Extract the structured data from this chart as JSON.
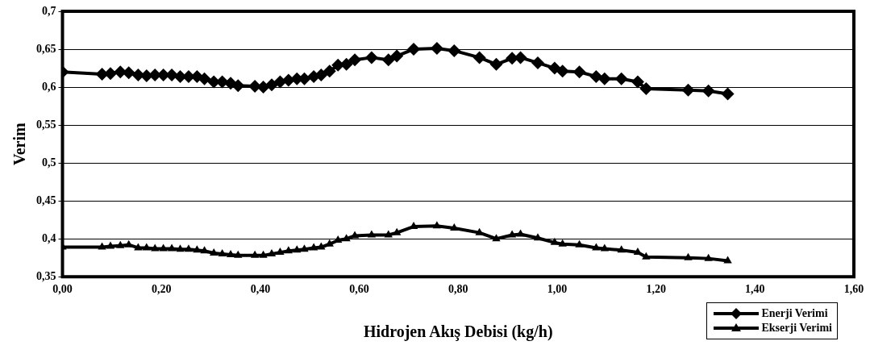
{
  "chart_data": {
    "type": "line",
    "xlabel": "Hidrojen Akış Debisi (kg/h)",
    "ylabel": "Verim",
    "x": [
      0,
      0.08,
      0.097,
      0.117,
      0.134,
      0.153,
      0.17,
      0.187,
      0.204,
      0.221,
      0.238,
      0.255,
      0.272,
      0.287,
      0.306,
      0.323,
      0.34,
      0.355,
      0.389,
      0.406,
      0.423,
      0.44,
      0.457,
      0.474,
      0.489,
      0.508,
      0.523,
      0.54,
      0.557,
      0.574,
      0.591,
      0.625,
      0.659,
      0.676,
      0.71,
      0.757,
      0.792,
      0.843,
      0.877,
      0.909,
      0.926,
      0.961,
      0.995,
      1.011,
      1.045,
      1.079,
      1.096,
      1.13,
      1.163,
      1.18,
      1.265,
      1.306,
      1.345
    ],
    "series": [
      {
        "name": "Enerji Verimi",
        "color": "#000000",
        "marker": "diamond",
        "values": [
          0.62,
          0.617,
          0.618,
          0.62,
          0.619,
          0.616,
          0.615,
          0.616,
          0.616,
          0.616,
          0.614,
          0.614,
          0.614,
          0.611,
          0.607,
          0.607,
          0.605,
          0.602,
          0.601,
          0.6,
          0.603,
          0.607,
          0.609,
          0.611,
          0.611,
          0.614,
          0.616,
          0.621,
          0.629,
          0.63,
          0.636,
          0.639,
          0.636,
          0.641,
          0.65,
          0.651,
          0.648,
          0.639,
          0.63,
          0.638,
          0.639,
          0.632,
          0.625,
          0.621,
          0.62,
          0.614,
          0.611,
          0.611,
          0.607,
          0.598,
          0.596,
          0.595,
          0.591
        ]
      },
      {
        "name": "Ekserji Verimi",
        "color": "#000000",
        "marker": "triangle",
        "values": [
          0.389,
          0.389,
          0.39,
          0.391,
          0.392,
          0.388,
          0.388,
          0.387,
          0.387,
          0.387,
          0.386,
          0.386,
          0.385,
          0.384,
          0.381,
          0.38,
          0.379,
          0.378,
          0.378,
          0.378,
          0.38,
          0.382,
          0.384,
          0.385,
          0.386,
          0.388,
          0.389,
          0.393,
          0.398,
          0.4,
          0.404,
          0.405,
          0.405,
          0.408,
          0.416,
          0.417,
          0.414,
          0.408,
          0.4,
          0.405,
          0.406,
          0.401,
          0.395,
          0.393,
          0.392,
          0.388,
          0.387,
          0.385,
          0.382,
          0.376,
          0.375,
          0.374,
          0.371
        ]
      }
    ],
    "xlim": [
      0,
      1.6
    ],
    "xticks": [
      {
        "value": 0,
        "label": "0,00"
      },
      {
        "value": 0.2,
        "label": "0,20"
      },
      {
        "value": 0.4,
        "label": "0,40"
      },
      {
        "value": 0.6,
        "label": "0,60"
      },
      {
        "value": 0.8,
        "label": "0,80"
      },
      {
        "value": 1.0,
        "label": "1,00"
      },
      {
        "value": 1.2,
        "label": "1,20"
      },
      {
        "value": 1.4,
        "label": "1,40"
      },
      {
        "value": 1.6,
        "label": "1,60"
      }
    ],
    "ylim": [
      0.35,
      0.7
    ],
    "yticks": [
      {
        "value": 0.35,
        "label": "0,35"
      },
      {
        "value": 0.4,
        "label": "0,4"
      },
      {
        "value": 0.45,
        "label": "0,45"
      },
      {
        "value": 0.5,
        "label": "0,5"
      },
      {
        "value": 0.55,
        "label": "0,55"
      },
      {
        "value": 0.6,
        "label": "0,6"
      },
      {
        "value": 0.65,
        "label": "0,65"
      },
      {
        "value": 0.7,
        "label": "0,7"
      }
    ],
    "grid": "y",
    "legend": "bottom right"
  }
}
